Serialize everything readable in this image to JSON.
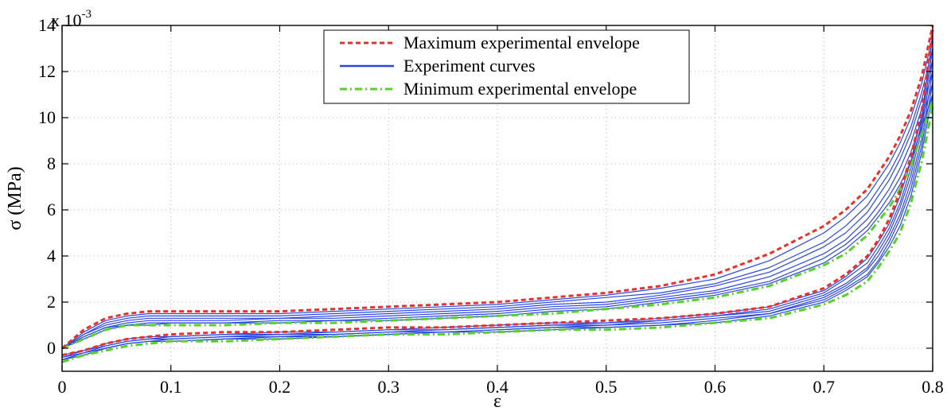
{
  "chart_data": {
    "type": "line",
    "xlabel": "ε",
    "ylabel": "σ (MPa)",
    "y_scale_label": {
      "base": "x 10",
      "exponent": "-3"
    },
    "xlim": [
      0,
      0.8
    ],
    "ylim": [
      -1,
      14
    ],
    "x_ticks": [
      "0",
      "0.1",
      "0.2",
      "0.3",
      "0.4",
      "0.5",
      "0.6",
      "0.7",
      "0.8"
    ],
    "y_ticks": [
      "0",
      "2",
      "4",
      "6",
      "8",
      "10",
      "12",
      "14"
    ],
    "grid": true,
    "legend_position": "top-center",
    "colors": {
      "max_envelope": "#e8302c",
      "experiment": "#2a45e0",
      "min_envelope": "#55d12a"
    },
    "legend": [
      {
        "label": "Maximum experimental envelope",
        "style": "dashed",
        "color_key": "max_envelope"
      },
      {
        "label": "Experiment curves",
        "style": "solid",
        "color_key": "experiment"
      },
      {
        "label": "Minimum experimental envelope",
        "style": "dashdot",
        "color_key": "min_envelope"
      }
    ],
    "series": [
      {
        "name": "Maximum experimental envelope",
        "loading": {
          "x": [
            0,
            0.02,
            0.04,
            0.06,
            0.08,
            0.1,
            0.15,
            0.2,
            0.25,
            0.3,
            0.35,
            0.4,
            0.45,
            0.5,
            0.55,
            0.6,
            0.65,
            0.7,
            0.72,
            0.74,
            0.75,
            0.76,
            0.77,
            0.78,
            0.79,
            0.8
          ],
          "y": [
            0,
            0.8,
            1.3,
            1.5,
            1.6,
            1.6,
            1.6,
            1.6,
            1.7,
            1.8,
            1.9,
            2.0,
            2.2,
            2.4,
            2.7,
            3.2,
            4.1,
            5.3,
            6.0,
            6.9,
            7.6,
            8.3,
            9.2,
            10.3,
            11.8,
            14.0
          ]
        },
        "unloading": {
          "x": [
            0,
            0.02,
            0.04,
            0.06,
            0.08,
            0.1,
            0.15,
            0.2,
            0.25,
            0.3,
            0.35,
            0.4,
            0.45,
            0.5,
            0.55,
            0.6,
            0.65,
            0.7,
            0.72,
            0.74,
            0.75,
            0.76,
            0.77,
            0.78,
            0.79,
            0.8
          ],
          "y": [
            -0.3,
            -0.1,
            0.2,
            0.4,
            0.5,
            0.6,
            0.7,
            0.7,
            0.8,
            0.9,
            0.9,
            1.0,
            1.1,
            1.2,
            1.3,
            1.5,
            1.8,
            2.6,
            3.2,
            4.0,
            4.7,
            5.6,
            6.8,
            8.3,
            10.3,
            13.8
          ]
        }
      },
      {
        "name": "Experiment curves",
        "curves": [
          {
            "loading_y": [
              0,
              0.7,
              1.2,
              1.4,
              1.5,
              1.5,
              1.5,
              1.5,
              1.6,
              1.7,
              1.8,
              1.9,
              2.1,
              2.3,
              2.6,
              3.0,
              3.8,
              5.0,
              5.7,
              6.6,
              7.3,
              8.0,
              8.9,
              10.0,
              11.5,
              13.5
            ],
            "unloading_y": [
              -0.3,
              -0.1,
              0.2,
              0.4,
              0.5,
              0.5,
              0.6,
              0.7,
              0.7,
              0.8,
              0.9,
              1.0,
              1.1,
              1.1,
              1.3,
              1.5,
              1.8,
              2.5,
              3.1,
              3.9,
              4.6,
              5.4,
              6.6,
              8.1,
              10.1,
              13.5
            ]
          },
          {
            "loading_y": [
              0,
              0.6,
              1.1,
              1.3,
              1.4,
              1.4,
              1.4,
              1.4,
              1.5,
              1.6,
              1.7,
              1.8,
              2.0,
              2.2,
              2.4,
              2.8,
              3.5,
              4.6,
              5.3,
              6.2,
              6.9,
              7.6,
              8.5,
              9.6,
              11.1,
              13.0
            ],
            "unloading_y": [
              -0.4,
              -0.1,
              0.1,
              0.3,
              0.4,
              0.5,
              0.6,
              0.6,
              0.7,
              0.8,
              0.8,
              0.9,
              1.0,
              1.1,
              1.2,
              1.4,
              1.7,
              2.4,
              3.0,
              3.7,
              4.4,
              5.2,
              6.3,
              7.8,
              9.8,
              13.0
            ]
          },
          {
            "loading_y": [
              0,
              0.6,
              1.0,
              1.2,
              1.3,
              1.3,
              1.3,
              1.3,
              1.4,
              1.5,
              1.6,
              1.7,
              1.9,
              2.0,
              2.3,
              2.7,
              3.3,
              4.4,
              5.0,
              5.9,
              6.6,
              7.3,
              8.2,
              9.3,
              10.8,
              12.5
            ],
            "unloading_y": [
              -0.4,
              -0.2,
              0.1,
              0.3,
              0.4,
              0.4,
              0.5,
              0.6,
              0.6,
              0.7,
              0.8,
              0.9,
              1.0,
              1.0,
              1.2,
              1.4,
              1.6,
              2.3,
              2.8,
              3.5,
              4.2,
              5.0,
              6.1,
              7.5,
              9.5,
              12.5
            ]
          },
          {
            "loading_y": [
              0,
              0.5,
              0.9,
              1.1,
              1.2,
              1.2,
              1.2,
              1.3,
              1.3,
              1.4,
              1.5,
              1.6,
              1.8,
              1.9,
              2.2,
              2.5,
              3.1,
              4.1,
              4.7,
              5.6,
              6.2,
              6.9,
              7.8,
              8.9,
              10.4,
              12.0
            ],
            "unloading_y": [
              -0.5,
              -0.2,
              0.0,
              0.2,
              0.3,
              0.4,
              0.5,
              0.5,
              0.6,
              0.7,
              0.7,
              0.8,
              0.9,
              1.0,
              1.1,
              1.3,
              1.5,
              2.2,
              2.7,
              3.4,
              4.0,
              4.8,
              5.8,
              7.2,
              9.1,
              12.0
            ]
          },
          {
            "loading_y": [
              0,
              0.5,
              0.9,
              1.0,
              1.1,
              1.1,
              1.1,
              1.2,
              1.2,
              1.3,
              1.4,
              1.5,
              1.7,
              1.8,
              2.1,
              2.4,
              2.9,
              3.9,
              4.5,
              5.3,
              5.9,
              6.6,
              7.4,
              8.5,
              9.9,
              11.5
            ],
            "unloading_y": [
              -0.5,
              -0.3,
              0.0,
              0.2,
              0.3,
              0.3,
              0.4,
              0.5,
              0.5,
              0.6,
              0.7,
              0.8,
              0.9,
              0.9,
              1.0,
              1.2,
              1.5,
              2.1,
              2.6,
              3.2,
              3.8,
              4.6,
              5.6,
              6.9,
              8.8,
              11.5
            ]
          },
          {
            "loading_y": [
              0,
              0.4,
              0.8,
              1.0,
              1.0,
              1.1,
              1.1,
              1.1,
              1.2,
              1.2,
              1.3,
              1.4,
              1.6,
              1.7,
              2.0,
              2.3,
              2.8,
              3.7,
              4.3,
              5.1,
              5.7,
              6.3,
              7.1,
              8.1,
              9.6,
              11.0
            ],
            "unloading_y": [
              -0.5,
              -0.3,
              0.0,
              0.2,
              0.3,
              0.3,
              0.4,
              0.4,
              0.5,
              0.6,
              0.7,
              0.7,
              0.8,
              0.9,
              1.0,
              1.1,
              1.4,
              2.0,
              2.5,
              3.1,
              3.7,
              4.4,
              5.3,
              6.6,
              8.5,
              11.0
            ]
          }
        ]
      },
      {
        "name": "Minimum experimental envelope",
        "loading": {
          "x": [
            0,
            0.02,
            0.04,
            0.06,
            0.08,
            0.1,
            0.15,
            0.2,
            0.25,
            0.3,
            0.35,
            0.4,
            0.45,
            0.5,
            0.55,
            0.6,
            0.65,
            0.7,
            0.72,
            0.74,
            0.75,
            0.76,
            0.77,
            0.78,
            0.79,
            0.8
          ],
          "y": [
            0,
            0.4,
            0.8,
            1.0,
            1.0,
            1.0,
            1.0,
            1.1,
            1.1,
            1.2,
            1.3,
            1.4,
            1.5,
            1.7,
            1.9,
            2.2,
            2.7,
            3.6,
            4.1,
            4.9,
            5.5,
            6.1,
            6.9,
            7.9,
            9.3,
            10.8
          ]
        },
        "unloading": {
          "x": [
            0,
            0.02,
            0.04,
            0.06,
            0.08,
            0.1,
            0.15,
            0.2,
            0.25,
            0.3,
            0.35,
            0.4,
            0.45,
            0.5,
            0.55,
            0.6,
            0.65,
            0.7,
            0.72,
            0.74,
            0.75,
            0.76,
            0.77,
            0.78,
            0.79,
            0.8
          ],
          "y": [
            -0.6,
            -0.3,
            -0.1,
            0.1,
            0.2,
            0.3,
            0.3,
            0.4,
            0.5,
            0.6,
            0.6,
            0.7,
            0.8,
            0.8,
            0.9,
            1.1,
            1.3,
            1.9,
            2.3,
            2.9,
            3.5,
            4.2,
            5.0,
            6.3,
            8.1,
            10.5
          ]
        }
      }
    ]
  }
}
